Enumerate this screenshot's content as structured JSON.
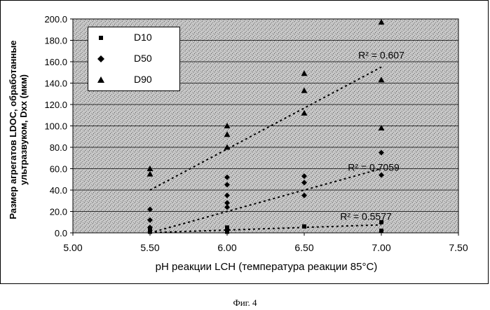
{
  "chart_data": {
    "type": "scatter",
    "xlabel": "pH реакции LCH (температура реакции 85°C)",
    "ylabel": "Размер агрегатов LDOC, обработанные ультразвуком, Dxx (мкм)",
    "xlim": [
      5.0,
      7.5
    ],
    "ylim": [
      0.0,
      200.0
    ],
    "x_ticks": [
      "5.00",
      "5.50",
      "6.00",
      "6.50",
      "7.00",
      "7.50"
    ],
    "y_ticks": [
      "0.0",
      "20.0",
      "40.0",
      "60.0",
      "80.0",
      "100.0",
      "120.0",
      "140.0",
      "160.0",
      "180.0",
      "200.0"
    ],
    "grid": true,
    "legend_position": "top-left",
    "series": [
      {
        "name": "D10",
        "marker": "square",
        "x": [
          5.5,
          5.5,
          5.5,
          6.0,
          6.0,
          6.0,
          6.5,
          7.0,
          7.0
        ],
        "y": [
          1.0,
          2.0,
          4.0,
          1.0,
          3.0,
          5.0,
          6.0,
          2.0,
          10.0
        ]
      },
      {
        "name": "D50",
        "marker": "diamond",
        "x": [
          5.5,
          5.5,
          5.5,
          6.0,
          6.0,
          6.0,
          6.0,
          6.0,
          6.5,
          6.5,
          6.5,
          7.0,
          7.0
        ],
        "y": [
          5.0,
          12.0,
          22.0,
          24.0,
          28.0,
          35.0,
          45.0,
          52.0,
          35.0,
          47.0,
          53.0,
          54.0,
          75.0
        ]
      },
      {
        "name": "D90",
        "marker": "triangle",
        "x": [
          5.5,
          5.5,
          6.0,
          6.0,
          6.0,
          6.5,
          6.5,
          6.5,
          7.0,
          7.0,
          7.0
        ],
        "y": [
          55.0,
          60.0,
          80.0,
          92.0,
          100.0,
          112.0,
          133.0,
          149.0,
          98.0,
          143.0,
          197.0
        ]
      }
    ],
    "trendlines": [
      {
        "series": "D10",
        "x": [
          5.5,
          7.0
        ],
        "y": [
          0.2,
          7.5
        ],
        "r2_label": "R² = 0.5577"
      },
      {
        "series": "D50",
        "x": [
          5.5,
          7.0
        ],
        "y": [
          0.0,
          60.0
        ],
        "r2_label": "R² = 0.7059"
      },
      {
        "series": "D90",
        "x": [
          5.5,
          7.0
        ],
        "y": [
          40.0,
          155.0
        ],
        "r2_label": "R² = 0.607"
      }
    ]
  },
  "caption": "Фиг. 4"
}
